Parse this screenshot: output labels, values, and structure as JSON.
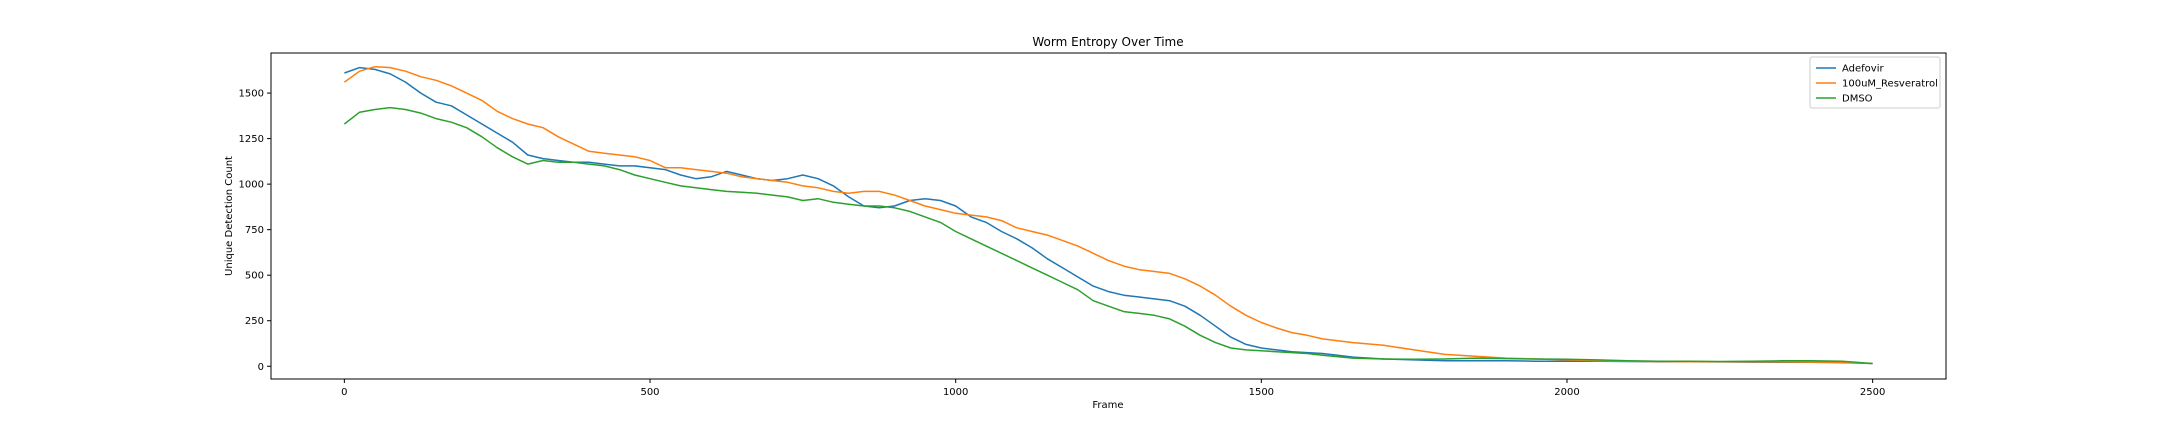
{
  "chart_data": {
    "type": "line",
    "title": "Worm Entropy Over Time",
    "xlabel": "Frame",
    "ylabel": "Unique Detection Count",
    "xlim": [
      -120,
      2620
    ],
    "ylim": [
      -70,
      1720
    ],
    "xticks": [
      0,
      500,
      1000,
      1500,
      2000,
      2500
    ],
    "yticks": [
      0,
      250,
      500,
      750,
      1000,
      1250,
      1500
    ],
    "grid": false,
    "legend_position": "top-right",
    "series": [
      {
        "name": "Adefovir",
        "color": "#1f77b4",
        "x": [
          0,
          25,
          50,
          75,
          100,
          125,
          150,
          175,
          200,
          225,
          250,
          275,
          300,
          325,
          350,
          375,
          400,
          425,
          450,
          475,
          500,
          525,
          550,
          575,
          600,
          625,
          650,
          675,
          700,
          725,
          750,
          775,
          800,
          825,
          850,
          875,
          900,
          925,
          950,
          975,
          1000,
          1025,
          1050,
          1075,
          1100,
          1125,
          1150,
          1175,
          1200,
          1225,
          1250,
          1275,
          1300,
          1325,
          1350,
          1375,
          1400,
          1425,
          1450,
          1475,
          1500,
          1525,
          1550,
          1575,
          1600,
          1650,
          1700,
          1750,
          1800,
          1850,
          1900,
          1950,
          2000,
          2050,
          2100,
          2150,
          2200,
          2250,
          2300,
          2350,
          2400,
          2450,
          2500
        ],
        "y": [
          1610,
          1640,
          1630,
          1605,
          1560,
          1500,
          1450,
          1430,
          1380,
          1330,
          1280,
          1230,
          1160,
          1140,
          1130,
          1120,
          1120,
          1110,
          1100,
          1100,
          1090,
          1080,
          1050,
          1030,
          1040,
          1070,
          1050,
          1030,
          1020,
          1030,
          1050,
          1030,
          990,
          930,
          880,
          870,
          880,
          910,
          920,
          910,
          880,
          820,
          790,
          740,
          700,
          650,
          590,
          540,
          490,
          440,
          410,
          390,
          380,
          370,
          360,
          330,
          280,
          220,
          160,
          120,
          100,
          90,
          80,
          75,
          70,
          50,
          40,
          35,
          30,
          30,
          30,
          28,
          27,
          27,
          26,
          25,
          25,
          24,
          23,
          22,
          22,
          20,
          15
        ]
      },
      {
        "name": "100uM_Resveratrol",
        "color": "#ff7f0e",
        "x": [
          0,
          25,
          50,
          75,
          100,
          125,
          150,
          175,
          200,
          225,
          250,
          275,
          300,
          325,
          350,
          375,
          400,
          425,
          450,
          475,
          500,
          525,
          550,
          575,
          600,
          625,
          650,
          675,
          700,
          725,
          750,
          775,
          800,
          825,
          850,
          875,
          900,
          925,
          950,
          975,
          1000,
          1025,
          1050,
          1075,
          1100,
          1125,
          1150,
          1175,
          1200,
          1225,
          1250,
          1275,
          1300,
          1325,
          1350,
          1375,
          1400,
          1425,
          1450,
          1475,
          1500,
          1525,
          1550,
          1575,
          1600,
          1650,
          1700,
          1750,
          1800,
          1850,
          1900,
          1950,
          2000,
          2050,
          2100,
          2150,
          2200,
          2250,
          2300,
          2350,
          2400,
          2450,
          2500
        ],
        "y": [
          1560,
          1620,
          1645,
          1640,
          1620,
          1590,
          1570,
          1540,
          1500,
          1460,
          1400,
          1360,
          1330,
          1310,
          1260,
          1220,
          1180,
          1170,
          1160,
          1150,
          1130,
          1090,
          1090,
          1080,
          1070,
          1060,
          1040,
          1030,
          1020,
          1010,
          990,
          980,
          960,
          950,
          960,
          960,
          940,
          910,
          880,
          860,
          840,
          830,
          820,
          800,
          760,
          740,
          720,
          690,
          660,
          620,
          580,
          550,
          530,
          520,
          510,
          480,
          440,
          390,
          330,
          280,
          240,
          210,
          185,
          170,
          150,
          130,
          115,
          90,
          65,
          55,
          45,
          40,
          35,
          30,
          27,
          26,
          25,
          25,
          25,
          24,
          23,
          22,
          15
        ]
      },
      {
        "name": "DMSO",
        "color": "#2ca02c",
        "x": [
          0,
          25,
          50,
          75,
          100,
          125,
          150,
          175,
          200,
          225,
          250,
          275,
          300,
          325,
          350,
          375,
          400,
          425,
          450,
          475,
          500,
          525,
          550,
          575,
          600,
          625,
          650,
          675,
          700,
          725,
          750,
          775,
          800,
          825,
          850,
          875,
          900,
          925,
          950,
          975,
          1000,
          1025,
          1050,
          1075,
          1100,
          1125,
          1150,
          1175,
          1200,
          1225,
          1250,
          1275,
          1300,
          1325,
          1350,
          1375,
          1400,
          1425,
          1450,
          1475,
          1500,
          1525,
          1550,
          1575,
          1600,
          1650,
          1700,
          1750,
          1800,
          1850,
          1900,
          1950,
          2000,
          2050,
          2100,
          2150,
          2200,
          2250,
          2300,
          2350,
          2400,
          2450,
          2500
        ],
        "y": [
          1330,
          1395,
          1410,
          1420,
          1410,
          1390,
          1360,
          1340,
          1310,
          1260,
          1200,
          1150,
          1110,
          1130,
          1120,
          1120,
          1110,
          1100,
          1080,
          1050,
          1030,
          1010,
          990,
          980,
          970,
          960,
          955,
          950,
          940,
          930,
          910,
          920,
          900,
          890,
          880,
          880,
          870,
          850,
          820,
          790,
          740,
          700,
          660,
          620,
          580,
          540,
          500,
          460,
          420,
          360,
          330,
          300,
          290,
          280,
          260,
          220,
          170,
          130,
          100,
          90,
          85,
          80,
          75,
          70,
          60,
          45,
          40,
          38,
          40,
          45,
          42,
          40,
          38,
          35,
          30,
          28,
          27,
          26,
          27,
          30,
          30,
          28,
          15
        ]
      }
    ]
  }
}
